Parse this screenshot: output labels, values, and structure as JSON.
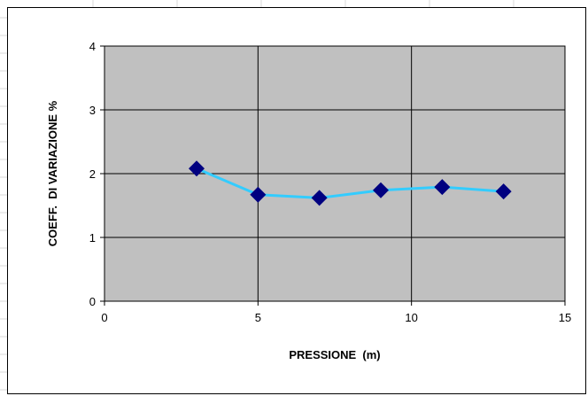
{
  "chart_data": {
    "type": "line",
    "title": "",
    "xlabel": "PRESSIONE  (m)",
    "ylabel": "COEFF.  DI VARIAZIONE %",
    "xlim": [
      0,
      15
    ],
    "ylim": [
      0,
      4
    ],
    "xticks": [
      0,
      5,
      10,
      15
    ],
    "yticks": [
      0,
      1,
      2,
      3,
      4
    ],
    "x_tick_labels": [
      "0",
      "5",
      "10",
      "15"
    ],
    "y_tick_labels": [
      "0",
      "1",
      "2",
      "3",
      "4"
    ],
    "grid": true,
    "legend": "none",
    "series": [
      {
        "x": [
          3,
          5,
          7,
          9,
          11,
          13
        ],
        "y": [
          2.08,
          1.67,
          1.62,
          1.74,
          1.79,
          1.72
        ],
        "line_color": "#33CCFF",
        "marker": "diamond",
        "marker_color": "#000080"
      }
    ],
    "colors": {
      "plot_background": "#C0C0C0",
      "gridline": "#000000"
    }
  }
}
